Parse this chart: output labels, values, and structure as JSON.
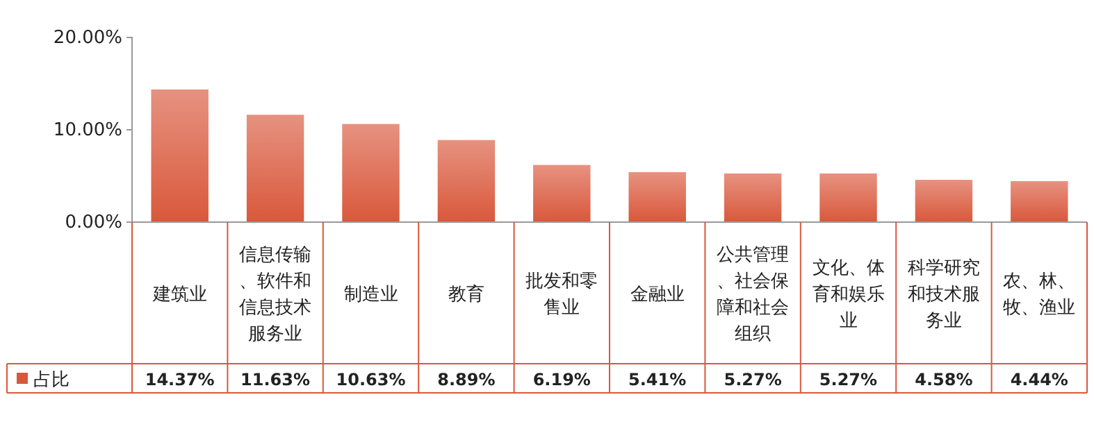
{
  "chart_data": {
    "type": "bar",
    "categories": [
      "建筑业",
      "信息传输、软件和信息技术服务业",
      "制造业",
      "教育",
      "批发和零售业",
      "金融业",
      "公共管理、社会保障和社会组织",
      "文化、体育和娱乐业",
      "科学研究和技术服务业",
      "农、林、牧、渔业"
    ],
    "series": [
      {
        "name": "占比",
        "color": "#d9583b",
        "values": [
          14.37,
          11.63,
          10.63,
          8.89,
          6.19,
          5.41,
          5.27,
          5.27,
          4.58,
          4.44
        ],
        "value_labels": [
          "14.37%",
          "11.63%",
          "10.63%",
          "8.89%",
          "6.19%",
          "5.41%",
          "5.27%",
          "5.27%",
          "4.58%",
          "4.44%"
        ]
      }
    ],
    "ylim": [
      0,
      20
    ],
    "yticks": [
      {
        "value": 0,
        "label": "0.00%"
      },
      {
        "value": 10,
        "label": "10.00%"
      },
      {
        "value": 20,
        "label": "20.00%"
      }
    ],
    "legend": "bottom left",
    "grid": false
  }
}
